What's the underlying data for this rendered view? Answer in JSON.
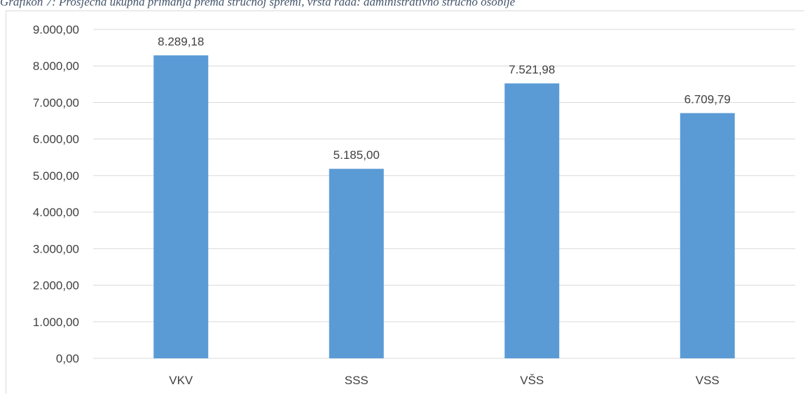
{
  "caption": "Grafikon 7: Prosječna ukupna primanja prema stručnoj spremi, vrsta rada: administrativno stručno osoblje",
  "colors": {
    "bar": "#5b9bd5",
    "grid": "#d9d9d9",
    "text": "#404040"
  },
  "chart_data": {
    "type": "bar",
    "title": "",
    "xlabel": "",
    "ylabel": "",
    "categories": [
      "VKV",
      "SSS",
      "VŠS",
      "VSS"
    ],
    "values": [
      8289.18,
      5185.0,
      7521.98,
      6709.79
    ],
    "value_labels": [
      "8.289,18",
      "5.185,00",
      "7.521,98",
      "6.709,79"
    ],
    "ylim": [
      0,
      9000
    ],
    "y_ticks": [
      0,
      1000,
      2000,
      3000,
      4000,
      5000,
      6000,
      7000,
      8000,
      9000
    ],
    "y_tick_labels": [
      "0,00",
      "1.000,00",
      "2.000,00",
      "3.000,00",
      "4.000,00",
      "5.000,00",
      "6.000,00",
      "7.000,00",
      "8.000,00",
      "9.000,00"
    ],
    "grid": true,
    "legend": "none"
  }
}
